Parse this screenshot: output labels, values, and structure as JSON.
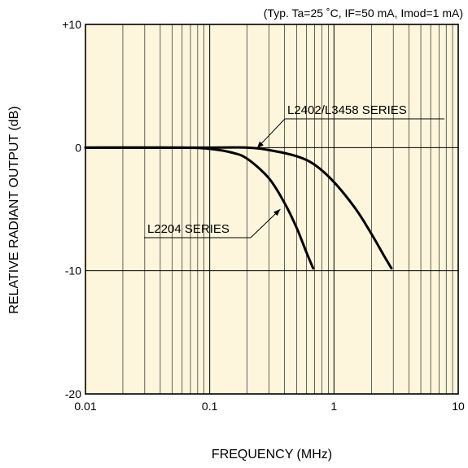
{
  "chart_data": {
    "type": "line",
    "annotation": "(Typ. Ta=25 ˚C, IF=50 mA, Imod=1 mA)",
    "xlabel": "FREQUENCY (MHz)",
    "ylabel": "RELATIVE RADIANT OUTPUT (dB)",
    "x_scale": "log",
    "xlim": [
      0.01,
      10
    ],
    "ylim": [
      -20,
      10
    ],
    "x_ticks": [
      {
        "value": 0.01,
        "label": "0.01"
      },
      {
        "value": 0.1,
        "label": "0.1"
      },
      {
        "value": 1,
        "label": "1"
      },
      {
        "value": 10,
        "label": "10"
      }
    ],
    "y_ticks": [
      {
        "value": 10,
        "label": "+10"
      },
      {
        "value": 0,
        "label": "0"
      },
      {
        "value": -10,
        "label": "-10"
      },
      {
        "value": -20,
        "label": "-20"
      }
    ],
    "grid": true,
    "colors": {
      "plot_bg": "#fdf6dc",
      "line": "#000000",
      "grid": "#000000"
    },
    "series": [
      {
        "name": "L2402/L3458 SERIES",
        "x": [
          0.01,
          0.1,
          0.2,
          0.3,
          0.5,
          0.7,
          1.0,
          1.5,
          2.0,
          2.5,
          2.9
        ],
        "y": [
          0,
          0,
          0,
          -0.2,
          -0.7,
          -1.4,
          -2.8,
          -5.0,
          -7.0,
          -8.7,
          -9.8
        ]
      },
      {
        "name": "L2204 SERIES",
        "x": [
          0.01,
          0.06,
          0.1,
          0.15,
          0.2,
          0.3,
          0.4,
          0.5,
          0.6,
          0.68
        ],
        "y": [
          0,
          0,
          -0.1,
          -0.4,
          -0.9,
          -2.5,
          -4.5,
          -6.5,
          -8.5,
          -9.8
        ]
      }
    ],
    "series_labels": [
      {
        "text": "L2402/L3458 SERIES",
        "series": 0,
        "point": [
          0.24,
          -0.05
        ]
      },
      {
        "text": "L2204 SERIES",
        "series": 1,
        "point": [
          0.37,
          -5.0
        ]
      }
    ]
  }
}
